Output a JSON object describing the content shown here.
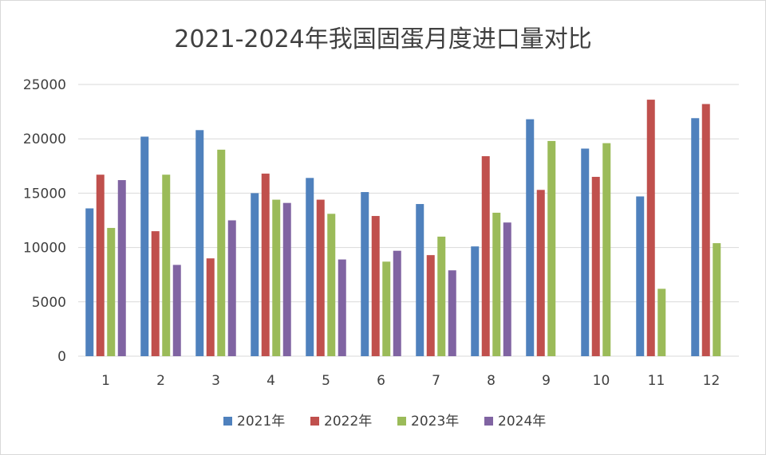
{
  "chart_data": {
    "type": "bar",
    "title": "2021-2024年我国固蛋月度进口量对比",
    "xlabel": "",
    "ylabel": "",
    "categories": [
      "1",
      "2",
      "3",
      "4",
      "5",
      "6",
      "7",
      "8",
      "9",
      "10",
      "11",
      "12"
    ],
    "ylim": [
      0,
      25000
    ],
    "yticks": [
      0,
      5000,
      10000,
      15000,
      20000,
      25000
    ],
    "grid": true,
    "legend_position": "bottom",
    "series": [
      {
        "name": "2021年",
        "color": "#4f81bd",
        "values": [
          13600,
          20200,
          20800,
          15000,
          16400,
          15100,
          14000,
          10100,
          21800,
          19100,
          14700,
          21900
        ]
      },
      {
        "name": "2022年",
        "color": "#c0504d",
        "values": [
          16700,
          11500,
          9000,
          16800,
          14400,
          12900,
          9300,
          18400,
          15300,
          16500,
          23600,
          23200
        ]
      },
      {
        "name": "2023年",
        "color": "#9bbb59",
        "values": [
          11800,
          16700,
          19000,
          14400,
          13100,
          8700,
          11000,
          13200,
          19800,
          19600,
          6200,
          10400
        ]
      },
      {
        "name": "2024年",
        "color": "#8064a2",
        "values": [
          16200,
          8400,
          12500,
          14100,
          8900,
          9700,
          7900,
          12300,
          null,
          null,
          null,
          null
        ]
      }
    ]
  }
}
